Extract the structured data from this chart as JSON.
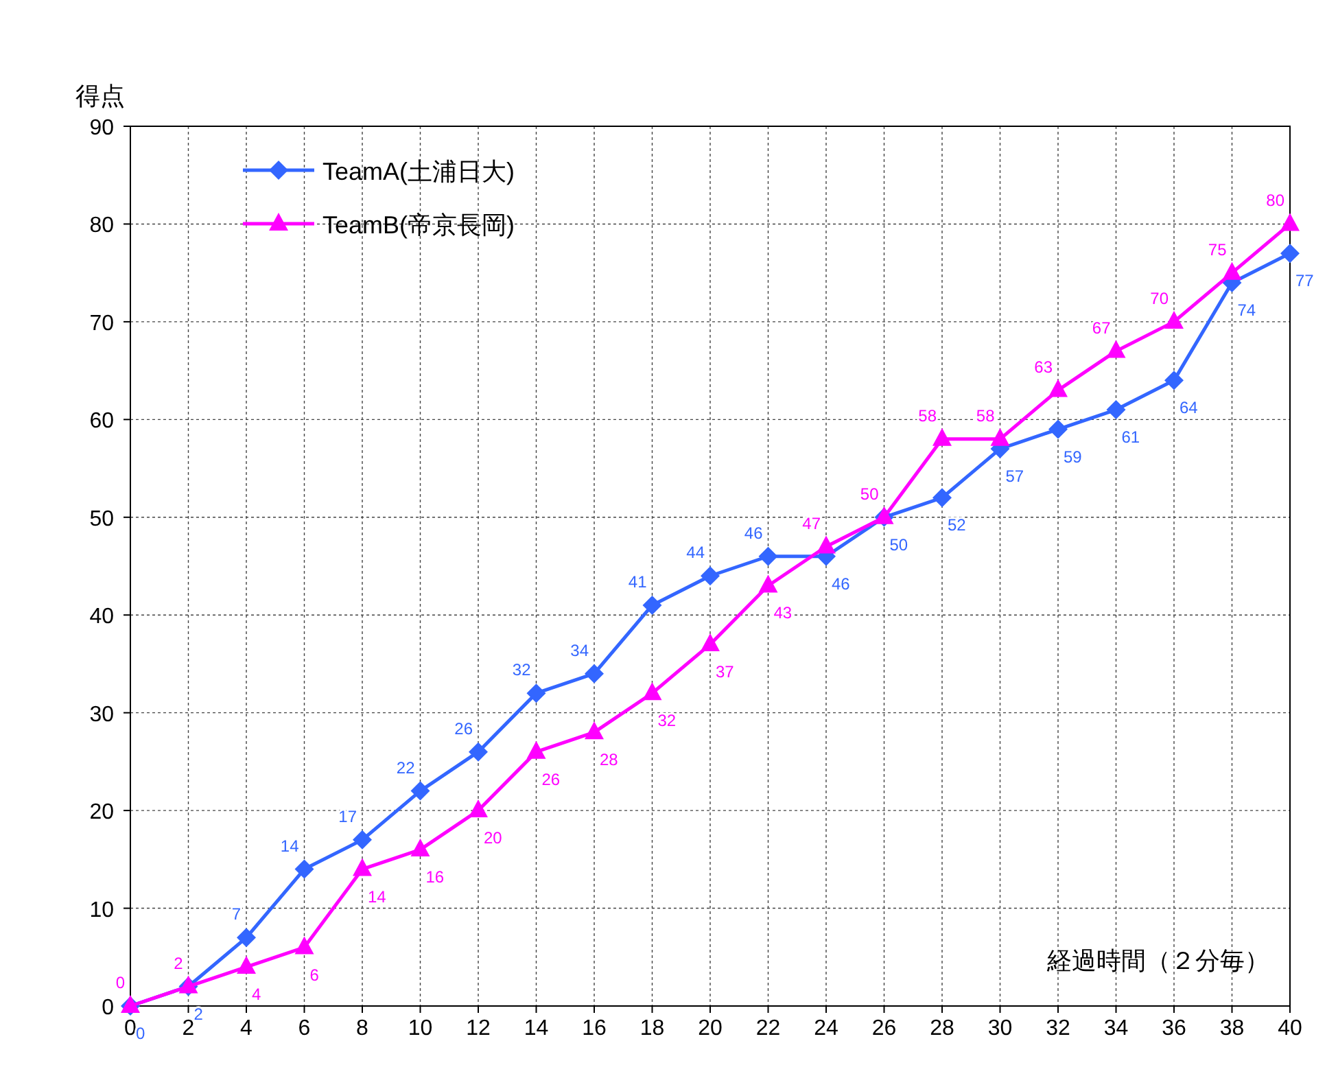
{
  "chart_data": {
    "type": "line",
    "ylabel": "得点",
    "xlabel": "経過時間（２分毎）",
    "x": [
      0,
      2,
      4,
      6,
      8,
      10,
      12,
      14,
      16,
      18,
      20,
      22,
      24,
      26,
      28,
      30,
      32,
      34,
      36,
      38,
      40
    ],
    "xlim": [
      0,
      40
    ],
    "xticks": [
      0,
      2,
      4,
      6,
      8,
      10,
      12,
      14,
      16,
      18,
      20,
      22,
      24,
      26,
      28,
      30,
      32,
      34,
      36,
      38,
      40
    ],
    "ylim": [
      0,
      90
    ],
    "yticks": [
      0,
      10,
      20,
      30,
      40,
      50,
      60,
      70,
      80,
      90
    ],
    "grid": true,
    "legend": "top left",
    "data_labels": true,
    "line_style": "solid",
    "series": [
      {
        "name": "TeamA(土浦日大)",
        "color": "#3366ff",
        "marker": "diamond",
        "values": [
          0,
          2,
          7,
          14,
          17,
          22,
          26,
          32,
          34,
          41,
          44,
          46,
          46,
          50,
          52,
          57,
          59,
          61,
          64,
          74,
          77
        ]
      },
      {
        "name": "TeamB(帝京長岡)",
        "color": "#ff00ff",
        "marker": "triangle",
        "values": [
          0,
          2,
          4,
          6,
          14,
          16,
          20,
          26,
          28,
          32,
          37,
          43,
          47,
          50,
          58,
          58,
          63,
          67,
          70,
          75,
          80
        ]
      }
    ]
  }
}
